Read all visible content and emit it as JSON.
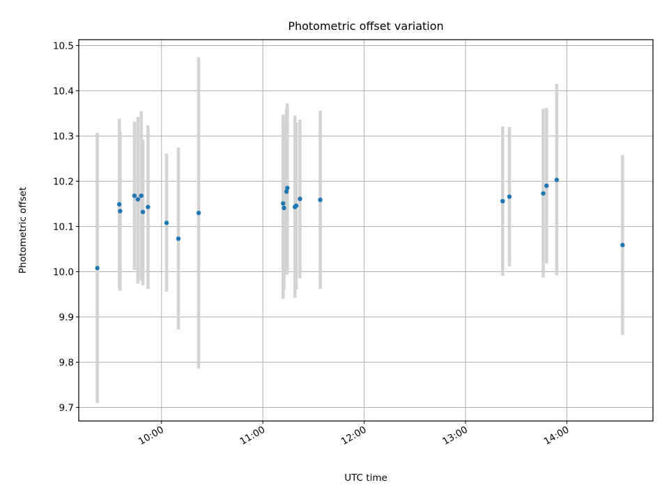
{
  "chart_data": {
    "type": "scatter",
    "title": "Photometric offset variation",
    "xlabel": "UTC time",
    "ylabel": "Photometric offset",
    "x_is_time": true,
    "xlim": [
      "09:11",
      "14:51"
    ],
    "ylim": [
      9.67,
      10.513
    ],
    "grid": true,
    "x_ticks": [
      "10:00",
      "11:00",
      "12:00",
      "13:00",
      "14:00"
    ],
    "y_ticks": [
      9.7,
      9.8,
      9.9,
      10.0,
      10.1,
      10.2,
      10.3,
      10.4,
      10.5
    ],
    "y_tick_labels": [
      "9.7",
      "9.8",
      "9.9",
      "10.0",
      "10.1",
      "10.2",
      "10.3",
      "10.4",
      "10.5"
    ],
    "marker_color": "#1f77b4",
    "errorbar_color": "#d3d3d3",
    "points": [
      {
        "t": "09:22",
        "y": 10.008,
        "low": 9.71,
        "high": 10.307
      },
      {
        "t": "09:35",
        "y": 10.149,
        "low": 9.963,
        "high": 10.338
      },
      {
        "t": "09:35:30",
        "y": 10.134,
        "low": 9.958,
        "high": 10.31
      },
      {
        "t": "09:44",
        "y": 10.168,
        "low": 10.004,
        "high": 10.332
      },
      {
        "t": "09:46",
        "y": 10.16,
        "low": 9.974,
        "high": 10.342
      },
      {
        "t": "09:48",
        "y": 10.168,
        "low": 9.98,
        "high": 10.355
      },
      {
        "t": "09:49",
        "y": 10.132,
        "low": 9.97,
        "high": 10.292
      },
      {
        "t": "09:52",
        "y": 10.143,
        "low": 9.962,
        "high": 10.324
      },
      {
        "t": "10:03",
        "y": 10.108,
        "low": 9.956,
        "high": 10.261
      },
      {
        "t": "10:10",
        "y": 10.073,
        "low": 9.872,
        "high": 10.274
      },
      {
        "t": "10:22",
        "y": 10.13,
        "low": 9.786,
        "high": 10.474
      },
      {
        "t": "11:12",
        "y": 10.151,
        "low": 9.94,
        "high": 10.347
      },
      {
        "t": "11:12:30",
        "y": 10.141,
        "low": 9.96,
        "high": 10.33
      },
      {
        "t": "11:14",
        "y": 10.177,
        "low": 9.993,
        "high": 10.361
      },
      {
        "t": "11:14:30",
        "y": 10.185,
        "low": 9.995,
        "high": 10.372
      },
      {
        "t": "11:19",
        "y": 10.143,
        "low": 9.942,
        "high": 10.345
      },
      {
        "t": "11:19:45",
        "y": 10.146,
        "low": 9.96,
        "high": 10.33
      },
      {
        "t": "11:22",
        "y": 10.161,
        "low": 9.985,
        "high": 10.336
      },
      {
        "t": "11:34",
        "y": 10.159,
        "low": 9.962,
        "high": 10.356
      },
      {
        "t": "13:22",
        "y": 10.156,
        "low": 9.991,
        "high": 10.321
      },
      {
        "t": "13:26",
        "y": 10.166,
        "low": 10.012,
        "high": 10.32
      },
      {
        "t": "13:46",
        "y": 10.173,
        "low": 9.987,
        "high": 10.36
      },
      {
        "t": "13:48",
        "y": 10.19,
        "low": 10.018,
        "high": 10.362
      },
      {
        "t": "13:54",
        "y": 10.203,
        "low": 9.992,
        "high": 10.415
      },
      {
        "t": "14:33",
        "y": 10.059,
        "low": 9.86,
        "high": 10.258
      }
    ]
  }
}
